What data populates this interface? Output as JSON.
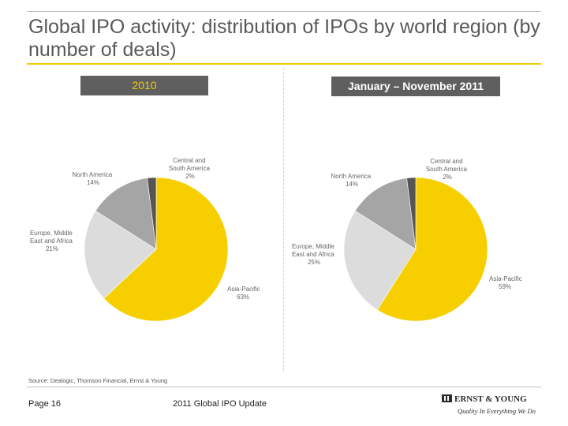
{
  "title": "Global IPO activity: distribution of IPOs by world region (by number of deals)",
  "colors": {
    "asia_pacific": "#f7cf00",
    "emea": "#dcdcdc",
    "north_america": "#a5a5a5",
    "central_south_america": "#555555",
    "accent_rule": "#f2cd00",
    "header_bg": "#5f5f5f"
  },
  "chart_data": [
    {
      "type": "pie",
      "title": "2010",
      "categories": [
        "Asia-Pacific",
        "Europe, Middle East and Africa",
        "North America",
        "Central and South America"
      ],
      "values": [
        63,
        21,
        14,
        2
      ],
      "labels": [
        {
          "name": "Asia-Pacific",
          "pct": "63%"
        },
        {
          "name": "Europe, Middle",
          "name2": "East and Africa",
          "pct": "21%"
        },
        {
          "name": "North America",
          "pct": "14%"
        },
        {
          "name": "Central and",
          "name2": "South America",
          "pct": "2%"
        }
      ]
    },
    {
      "type": "pie",
      "title": "January – November 2011",
      "categories": [
        "Asia-Pacific",
        "Europe, Middle East and Africa",
        "North America",
        "Central and South America"
      ],
      "values": [
        59,
        25,
        14,
        2
      ],
      "labels": [
        {
          "name": "Asia-Pacific",
          "pct": "59%"
        },
        {
          "name": "Europe, Middle",
          "name2": "East and Africa",
          "pct": "25%"
        },
        {
          "name": "North America",
          "pct": "14%"
        },
        {
          "name": "Central and",
          "name2": "South America",
          "pct": "2%"
        }
      ]
    }
  ],
  "source": "Source: Dealogic, Thomson Financial, Ernst & Young",
  "footer": {
    "page": "Page 16",
    "document": "2011 Global IPO Update",
    "brand": "ERNST & YOUNG",
    "tagline": "Quality In Everything We Do"
  }
}
